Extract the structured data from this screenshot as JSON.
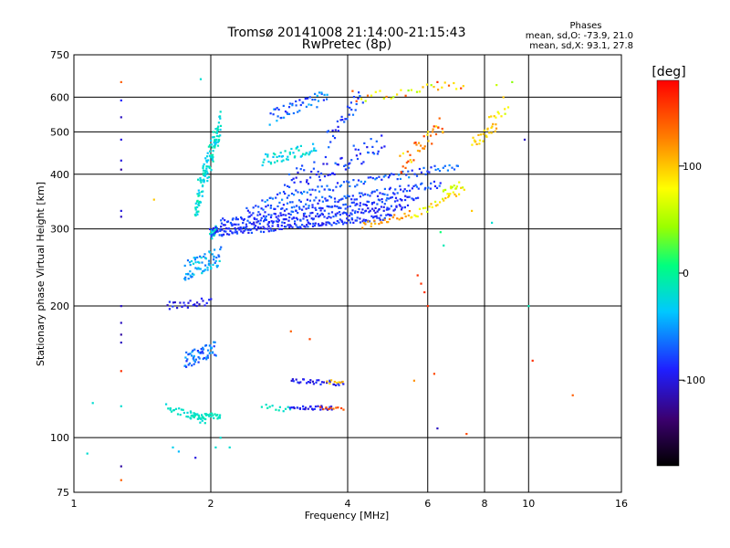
{
  "chart_data": {
    "type": "scatter",
    "title": "Tromsø 20141008 21:14:00-21:15:43",
    "subtitle": "RwPretec (8p)",
    "xlabel": "Frequency [MHz]",
    "ylabel": "Stationary phase Virtual Height [km]",
    "x_scale": "log",
    "y_scale": "log",
    "xlim": [
      1,
      16
    ],
    "ylim": [
      75,
      750
    ],
    "x_ticks": [
      1,
      2,
      4,
      6,
      8,
      10,
      16
    ],
    "x_tick_labels": [
      "1",
      "2",
      "4",
      "6",
      "8",
      "10",
      "16"
    ],
    "y_ticks": [
      75,
      100,
      200,
      300,
      400,
      500,
      600,
      750
    ],
    "y_tick_labels": [
      "75",
      "100",
      "200",
      "300",
      "400",
      "500",
      "600",
      "750"
    ],
    "grid": true,
    "colorbar": {
      "label": "[deg]",
      "range": [
        -180,
        180
      ],
      "ticks": [
        100,
        0,
        -100
      ],
      "tick_labels": [
        "100",
        "0",
        "-100"
      ],
      "colors": [
        "#000000",
        "#3b006e",
        "#1f1fff",
        "#00c8ff",
        "#00ff7f",
        "#9aff00",
        "#ffff00",
        "#ff8000",
        "#ff0000"
      ]
    },
    "phase_stats": {
      "heading": "Phases",
      "line_o": "mean, sd,O: -73.9, 21.0",
      "line_x": "mean, sd,X:  93.1, 27.8"
    },
    "traces": [
      {
        "name": "",
        "f0": 1.8,
        "f1": 2.1,
        "h0": 112,
        "h1": 112,
        "spread": 0.015,
        "n": 40,
        "phase": [
          -20,
          -10
        ]
      },
      {
        "name": "",
        "f0": 1.6,
        "f1": 1.95,
        "h0": 118,
        "h1": 109,
        "spread": 0.02,
        "n": 30,
        "phase": [
          -25,
          -10
        ]
      },
      {
        "name": "",
        "f0": 2.6,
        "f1": 3.0,
        "h0": 118,
        "h1": 116,
        "spread": 0.015,
        "n": 12,
        "phase": [
          -20,
          -5
        ]
      },
      {
        "name": "",
        "f0": 3.0,
        "f1": 3.7,
        "h0": 117,
        "h1": 117,
        "spread": 0.01,
        "n": 30,
        "phase": [
          -110,
          -80
        ]
      },
      {
        "name": "",
        "f0": 3.5,
        "f1": 3.9,
        "h0": 117,
        "h1": 117,
        "spread": 0.01,
        "n": 10,
        "phase": [
          120,
          160
        ]
      },
      {
        "name": "",
        "f0": 3.0,
        "f1": 3.9,
        "h0": 135,
        "h1": 133,
        "spread": 0.012,
        "n": 32,
        "phase": [
          -110,
          -80
        ]
      },
      {
        "name": "",
        "f0": 3.6,
        "f1": 3.9,
        "h0": 134,
        "h1": 134,
        "spread": 0.01,
        "n": 8,
        "phase": [
          90,
          120
        ]
      },
      {
        "name": "",
        "f0": 2.0,
        "f1": 2.06,
        "h0": 290,
        "h1": 300,
        "spread": 0.02,
        "n": 30,
        "phase": [
          -25,
          -10
        ]
      },
      {
        "name": "",
        "f0": 2.0,
        "f1": 5.0,
        "h0": 292,
        "h1": 320,
        "spread": 0.015,
        "n": 140,
        "phase": [
          -100,
          -70
        ]
      },
      {
        "name": "",
        "f0": 2.0,
        "f1": 5.4,
        "h0": 300,
        "h1": 338,
        "spread": 0.015,
        "n": 140,
        "phase": [
          -100,
          -70
        ]
      },
      {
        "name": "",
        "f0": 2.1,
        "f1": 5.7,
        "h0": 312,
        "h1": 355,
        "spread": 0.015,
        "n": 120,
        "phase": [
          -95,
          -65
        ]
      },
      {
        "name": "",
        "f0": 2.4,
        "f1": 6.4,
        "h0": 330,
        "h1": 380,
        "spread": 0.02,
        "n": 110,
        "phase": [
          -95,
          -60
        ]
      },
      {
        "name": "",
        "f0": 2.6,
        "f1": 7.0,
        "h0": 350,
        "h1": 420,
        "spread": 0.02,
        "n": 90,
        "phase": [
          -90,
          -50
        ]
      },
      {
        "name": "",
        "f0": 4.3,
        "f1": 5.5,
        "h0": 305,
        "h1": 325,
        "spread": 0.015,
        "n": 25,
        "phase": [
          100,
          130
        ]
      },
      {
        "name": "",
        "f0": 5.5,
        "f1": 7.2,
        "h0": 320,
        "h1": 370,
        "spread": 0.02,
        "n": 30,
        "phase": [
          60,
          110
        ]
      },
      {
        "name": "",
        "f0": 6.5,
        "f1": 7.0,
        "h0": 360,
        "h1": 380,
        "spread": 0.02,
        "n": 15,
        "phase": [
          50,
          80
        ]
      },
      {
        "name": "",
        "f0": 7.5,
        "f1": 8.5,
        "h0": 470,
        "h1": 520,
        "spread": 0.03,
        "n": 25,
        "phase": [
          80,
          120
        ]
      },
      {
        "name": "",
        "f0": 8.2,
        "f1": 9.0,
        "h0": 540,
        "h1": 560,
        "spread": 0.02,
        "n": 10,
        "phase": [
          60,
          110
        ]
      },
      {
        "name": "",
        "f0": 1.6,
        "f1": 2.0,
        "h0": 200,
        "h1": 205,
        "spread": 0.02,
        "n": 25,
        "phase": [
          -110,
          -80
        ]
      },
      {
        "name": "",
        "f0": 1.75,
        "f1": 2.05,
        "h0": 150,
        "h1": 160,
        "spread": 0.04,
        "n": 60,
        "phase": [
          -90,
          -40
        ]
      },
      {
        "name": "",
        "f0": 1.75,
        "f1": 2.1,
        "h0": 240,
        "h1": 260,
        "spread": 0.05,
        "n": 70,
        "phase": [
          -70,
          -20
        ]
      },
      {
        "name": "",
        "f0": 1.85,
        "f1": 2.1,
        "h0": 340,
        "h1": 520,
        "spread": 0.08,
        "n": 120,
        "phase": [
          -40,
          -5
        ]
      },
      {
        "name": "",
        "f0": 2.6,
        "f1": 3.4,
        "h0": 430,
        "h1": 460,
        "spread": 0.03,
        "n": 50,
        "phase": [
          -40,
          -10
        ]
      },
      {
        "name": "",
        "f0": 2.7,
        "f1": 3.6,
        "h0": 540,
        "h1": 600,
        "spread": 0.04,
        "n": 50,
        "phase": [
          -90,
          -40
        ]
      },
      {
        "name": "",
        "f0": 3.6,
        "f1": 4.3,
        "h0": 480,
        "h1": 600,
        "spread": 0.05,
        "n": 30,
        "phase": [
          -100,
          -60
        ]
      },
      {
        "name": "",
        "f0": 4.2,
        "f1": 7.2,
        "h0": 600,
        "h1": 640,
        "spread": 0.03,
        "n": 30,
        "phase": [
          40,
          160
        ]
      },
      {
        "name": "",
        "f0": 5.2,
        "f1": 6.5,
        "h0": 420,
        "h1": 520,
        "spread": 0.05,
        "n": 40,
        "phase": [
          80,
          160
        ]
      },
      {
        "name": "",
        "f0": 2.9,
        "f1": 4.8,
        "h0": 380,
        "h1": 470,
        "spread": 0.06,
        "n": 70,
        "phase": [
          -100,
          -60
        ]
      }
    ],
    "isolated_points": [
      {
        "x": 1.27,
        "y": 650,
        "phase": 140
      },
      {
        "x": 1.27,
        "y": 590,
        "phase": -90
      },
      {
        "x": 1.27,
        "y": 540,
        "phase": -110
      },
      {
        "x": 1.27,
        "y": 480,
        "phase": -100
      },
      {
        "x": 1.27,
        "y": 430,
        "phase": -100
      },
      {
        "x": 1.27,
        "y": 410,
        "phase": -120
      },
      {
        "x": 1.27,
        "y": 330,
        "phase": -100
      },
      {
        "x": 1.27,
        "y": 320,
        "phase": -110
      },
      {
        "x": 1.27,
        "y": 200,
        "phase": -110
      },
      {
        "x": 1.27,
        "y": 183,
        "phase": -110
      },
      {
        "x": 1.27,
        "y": 172,
        "phase": -120
      },
      {
        "x": 1.27,
        "y": 165,
        "phase": -110
      },
      {
        "x": 1.27,
        "y": 142,
        "phase": 160
      },
      {
        "x": 1.27,
        "y": 118,
        "phase": -20
      },
      {
        "x": 1.27,
        "y": 86,
        "phase": -120
      },
      {
        "x": 1.27,
        "y": 80,
        "phase": 140
      },
      {
        "x": 1.1,
        "y": 120,
        "phase": -20
      },
      {
        "x": 1.07,
        "y": 92,
        "phase": -20
      },
      {
        "x": 1.5,
        "y": 350,
        "phase": 100
      },
      {
        "x": 1.9,
        "y": 660,
        "phase": -20
      },
      {
        "x": 1.65,
        "y": 95,
        "phase": -30
      },
      {
        "x": 1.7,
        "y": 93,
        "phase": -40
      },
      {
        "x": 1.85,
        "y": 90,
        "phase": -100
      },
      {
        "x": 2.05,
        "y": 95,
        "phase": -20
      },
      {
        "x": 2.2,
        "y": 95,
        "phase": -20
      },
      {
        "x": 2.1,
        "y": 100,
        "phase": -20
      },
      {
        "x": 3.0,
        "y": 175,
        "phase": 140
      },
      {
        "x": 3.3,
        "y": 168,
        "phase": 150
      },
      {
        "x": 5.7,
        "y": 235,
        "phase": 160
      },
      {
        "x": 5.8,
        "y": 225,
        "phase": 160
      },
      {
        "x": 5.9,
        "y": 215,
        "phase": 160
      },
      {
        "x": 6.0,
        "y": 200,
        "phase": 160
      },
      {
        "x": 6.3,
        "y": 105,
        "phase": -110
      },
      {
        "x": 6.4,
        "y": 295,
        "phase": 10
      },
      {
        "x": 6.5,
        "y": 275,
        "phase": -10
      },
      {
        "x": 7.3,
        "y": 102,
        "phase": 150
      },
      {
        "x": 7.5,
        "y": 330,
        "phase": 100
      },
      {
        "x": 8.3,
        "y": 310,
        "phase": -20
      },
      {
        "x": 9.8,
        "y": 480,
        "phase": -110
      },
      {
        "x": 10.0,
        "y": 200,
        "phase": -10
      },
      {
        "x": 12.5,
        "y": 125,
        "phase": 140
      },
      {
        "x": 10.2,
        "y": 150,
        "phase": 160
      },
      {
        "x": 6.2,
        "y": 140,
        "phase": 150
      },
      {
        "x": 5.6,
        "y": 135,
        "phase": 120
      },
      {
        "x": 4.1,
        "y": 620,
        "phase": 140
      },
      {
        "x": 6.3,
        "y": 650,
        "phase": 160
      },
      {
        "x": 8.8,
        "y": 600,
        "phase": 100
      },
      {
        "x": 9.2,
        "y": 650,
        "phase": 40
      },
      {
        "x": 8.5,
        "y": 640,
        "phase": 60
      }
    ]
  }
}
